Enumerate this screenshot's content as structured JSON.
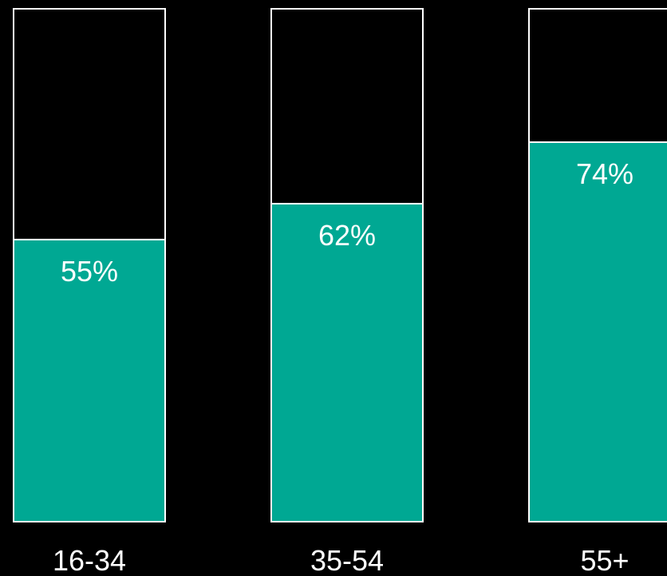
{
  "chart_data": {
    "type": "bar",
    "categories": [
      "16-34",
      "35-54",
      "55+"
    ],
    "values": [
      55,
      62,
      74
    ],
    "value_labels": [
      "55%",
      "62%",
      "74%"
    ],
    "ylim": [
      0,
      100
    ],
    "title": "",
    "xlabel": "",
    "ylabel": "",
    "grid": false,
    "legend": "none"
  },
  "colors": {
    "background": "#000000",
    "fill": "#00a893",
    "outline": "#ffffff",
    "text": "#ffffff",
    "label_on_bar": "#ffffff"
  }
}
